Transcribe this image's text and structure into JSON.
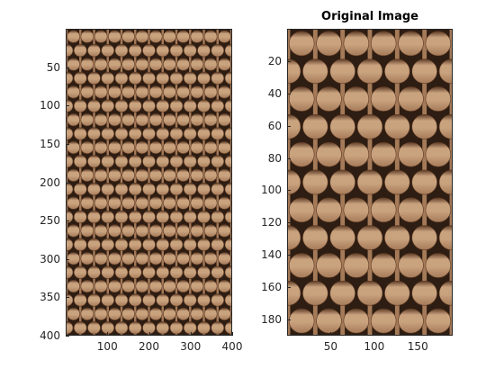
{
  "left_axes": {
    "title": "",
    "yticks": [
      "50",
      "100",
      "150",
      "200",
      "250",
      "300",
      "350",
      "400"
    ],
    "xticks": [
      "100",
      "200",
      "300",
      "400"
    ],
    "ylim": [
      0,
      400
    ],
    "xlim": [
      0,
      400
    ],
    "weave_rows": 22,
    "weave_cols": 12
  },
  "right_axes": {
    "title": "Original Image",
    "yticks": [
      "20",
      "40",
      "60",
      "80",
      "100",
      "120",
      "140",
      "160",
      "180"
    ],
    "xticks": [
      "50",
      "100",
      "150"
    ],
    "ylim": [
      0,
      190
    ],
    "xlim": [
      0,
      190
    ],
    "weave_rows": 11,
    "weave_cols": 6
  },
  "colors": {
    "wicker_light": "#c9a27e",
    "wicker_mid": "#a57a58",
    "wicker_dark": "#5c3a24",
    "gap": "#2e1d12",
    "axis": "#262626"
  }
}
